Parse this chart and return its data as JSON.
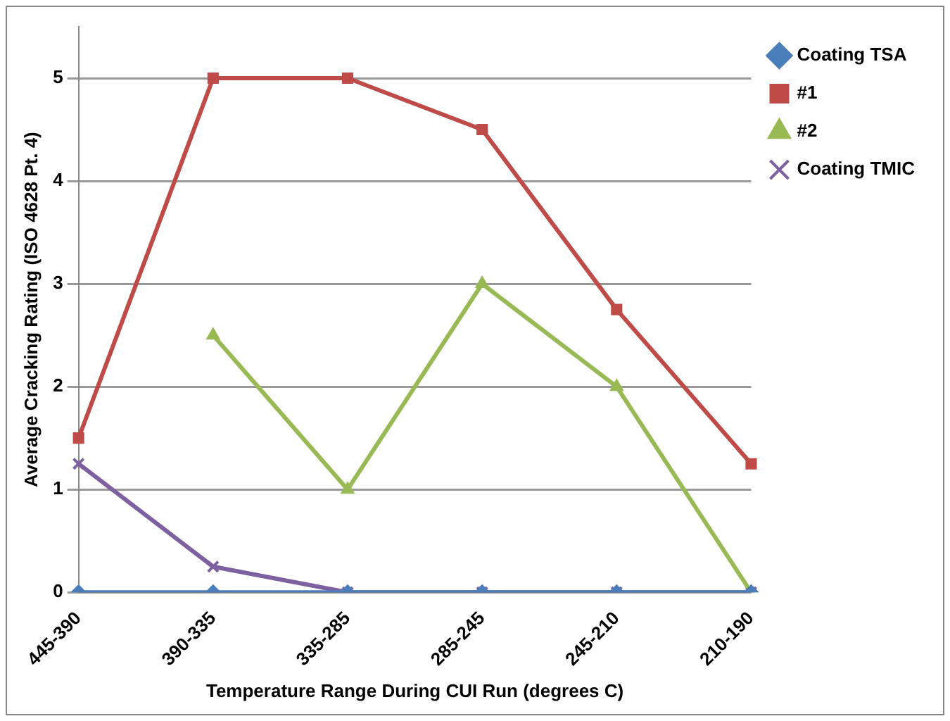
{
  "chart_data": {
    "type": "line",
    "xlabel": "Temperature Range During CUI Run (degrees C)",
    "ylabel": "Average Cracking Rating (ISO 4628 Pt. 4)",
    "categories": [
      "445-390",
      "390-335",
      "335-285",
      "285-245",
      "245-210",
      "210-190"
    ],
    "series": [
      {
        "name": "Coating TSA",
        "color": "#4a7ebb",
        "marker": "diamond",
        "values": [
          0,
          0,
          0,
          0,
          0,
          0
        ]
      },
      {
        "name": "#1",
        "color": "#be4b48",
        "marker": "square",
        "values": [
          1.5,
          5,
          5,
          4.5,
          2.75,
          1.25
        ]
      },
      {
        "name": "#2",
        "color": "#98b954",
        "marker": "triangle",
        "values": [
          null,
          2.5,
          1,
          3,
          2,
          0
        ]
      },
      {
        "name": "Coating TMIC",
        "color": "#7d60a0",
        "marker": "cross",
        "values": [
          1.25,
          0.25,
          0,
          0,
          0,
          0
        ]
      }
    ],
    "ylim": [
      0,
      5.5
    ],
    "yticks": [
      0,
      1,
      2,
      3,
      4,
      5
    ],
    "grid": "y",
    "legend": "top right"
  }
}
